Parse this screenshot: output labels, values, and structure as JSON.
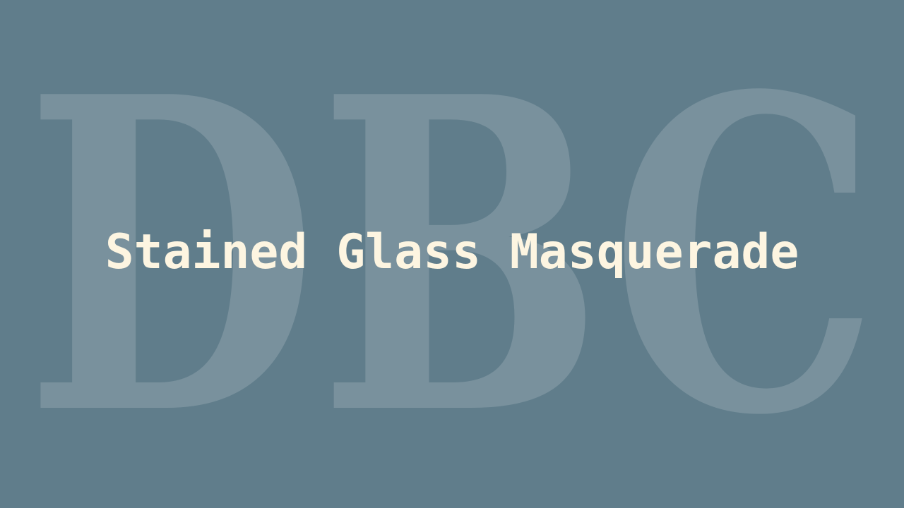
{
  "background": {
    "monogram": "DBC",
    "color": "#607d8b",
    "monogram_color": "#ffffff"
  },
  "title": {
    "text": "Stained Glass Masquerade",
    "color": "#fdf5e1"
  }
}
